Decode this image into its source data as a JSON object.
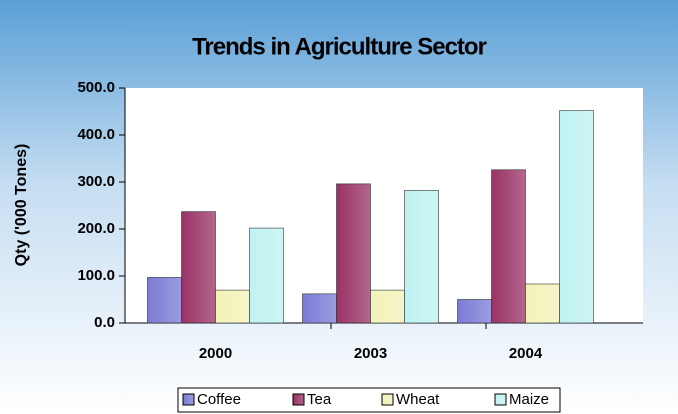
{
  "chart_data": {
    "type": "bar",
    "title": "Trends in Agriculture Sector",
    "y_label": "Qty ('000 Tones)",
    "categories": [
      "2000",
      "2003",
      "2004"
    ],
    "series": [
      {
        "name": "Coffee",
        "color": "#7b7bd6",
        "values": [
          97,
          62,
          50
        ]
      },
      {
        "name": "Tea",
        "color": "#993366",
        "values": [
          237,
          296,
          326
        ]
      },
      {
        "name": "Wheat",
        "color": "#f2f2b8",
        "values": [
          70,
          70,
          83
        ]
      },
      {
        "name": "Maize",
        "color": "#bff2f2",
        "values": [
          202,
          282,
          452
        ]
      }
    ],
    "ylim": [
      0,
      500
    ],
    "yticks": [
      {
        "value": 0,
        "label": "0.0"
      },
      {
        "value": 100,
        "label": "100.0"
      },
      {
        "value": 200,
        "label": "200.0"
      },
      {
        "value": 300,
        "label": "300.0"
      },
      {
        "value": 400,
        "label": "400.0"
      },
      {
        "value": 500,
        "label": "500.0"
      }
    ],
    "legend": "bottom"
  }
}
